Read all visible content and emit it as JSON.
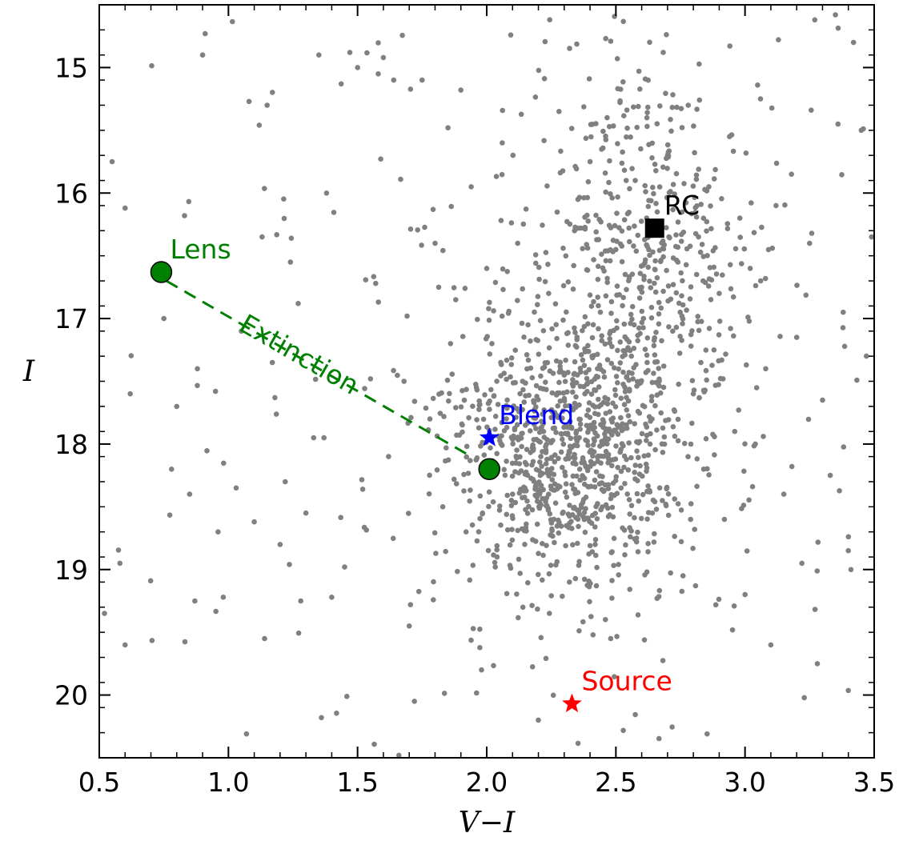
{
  "chart_data": {
    "type": "scatter",
    "title": "",
    "xlabel": "V−I",
    "ylabel": "I",
    "xlim": [
      0.5,
      3.5
    ],
    "ylim": [
      20.5,
      14.5
    ],
    "y_inverted": true,
    "x_ticks": [
      "0.5",
      "1.0",
      "1.5",
      "2.0",
      "2.5",
      "3.0",
      "3.5"
    ],
    "y_ticks": [
      "15",
      "16",
      "17",
      "18",
      "19",
      "20"
    ],
    "grid": false,
    "legend": "none",
    "colors": {
      "field_stars": "#808080",
      "lens": "#008000",
      "blend": "#0000ff",
      "source": "#ff0000",
      "rc": "#000000"
    },
    "field_stars": {
      "description_of_distribution": "bulge field stars concentrated around V-I 1.9–2.9, I 15.5–19.5",
      "sample_points": [
        [
          0.55,
          15.75
        ],
        [
          0.6,
          16.12
        ],
        [
          0.52,
          19.35
        ],
        [
          0.58,
          18.95
        ],
        [
          0.6,
          19.6
        ],
        [
          0.62,
          17.6
        ],
        [
          0.75,
          17.0
        ],
        [
          0.8,
          17.7
        ],
        [
          0.78,
          18.2
        ],
        [
          0.83,
          16.18
        ],
        [
          0.85,
          18.4
        ],
        [
          0.87,
          19.25
        ],
        [
          0.88,
          17.4
        ],
        [
          0.9,
          14.9
        ],
        [
          0.91,
          14.73
        ],
        [
          0.95,
          17.58
        ],
        [
          0.96,
          18.7
        ],
        [
          0.98,
          19.22
        ],
        [
          1.03,
          18.35
        ],
        [
          1.05,
          17.1
        ],
        [
          1.07,
          20.31
        ],
        [
          1.08,
          15.27
        ],
        [
          1.1,
          18.62
        ],
        [
          1.14,
          19.55
        ],
        [
          1.15,
          15.3
        ],
        [
          1.17,
          17.35
        ],
        [
          1.18,
          17.63
        ],
        [
          1.2,
          18.8
        ],
        [
          1.22,
          18.3
        ],
        [
          1.24,
          16.55
        ],
        [
          1.27,
          16.88
        ],
        [
          1.28,
          19.25
        ],
        [
          1.3,
          18.55
        ],
        [
          1.33,
          17.95
        ],
        [
          1.35,
          14.9
        ],
        [
          1.36,
          20.18
        ],
        [
          1.37,
          17.95
        ],
        [
          1.38,
          16.0
        ],
        [
          1.4,
          19.22
        ],
        [
          1.45,
          18.98
        ],
        [
          1.47,
          14.88
        ],
        [
          1.5,
          15.0
        ],
        [
          1.52,
          18.36
        ],
        [
          1.55,
          17.48
        ],
        [
          1.57,
          16.72
        ],
        [
          1.58,
          15.05
        ],
        [
          1.6,
          14.92
        ],
        [
          1.62,
          18.1
        ],
        [
          1.64,
          15.1
        ],
        [
          1.66,
          20.48
        ],
        [
          1.68,
          17.5
        ],
        [
          1.7,
          19.45
        ],
        [
          1.72,
          20.05
        ],
        [
          1.75,
          15.1
        ],
        [
          1.78,
          17.8
        ],
        [
          1.8,
          16.4
        ],
        [
          1.83,
          18.5
        ],
        [
          1.85,
          15.48
        ],
        [
          1.86,
          17.2
        ],
        [
          1.88,
          16.85
        ],
        [
          1.9,
          15.18
        ],
        [
          1.92,
          18.7
        ],
        [
          1.94,
          15.95
        ],
        [
          1.96,
          17.55
        ],
        [
          1.98,
          19.8
        ],
        [
          2.0,
          16.6
        ],
        [
          2.02,
          17.2
        ],
        [
          2.04,
          18.9
        ],
        [
          2.06,
          15.6
        ],
        [
          2.08,
          17.7
        ],
        [
          2.1,
          18.4
        ],
        [
          2.12,
          16.4
        ],
        [
          2.14,
          19.3
        ],
        [
          2.16,
          17.05
        ],
        [
          2.18,
          18.05
        ],
        [
          2.2,
          20.2
        ],
        [
          2.22,
          17.9
        ],
        [
          2.24,
          16.8
        ],
        [
          2.26,
          18.6
        ],
        [
          2.28,
          15.35
        ],
        [
          2.3,
          17.45
        ],
        [
          2.32,
          19.1
        ],
        [
          2.34,
          16.3
        ],
        [
          2.36,
          18.2
        ],
        [
          2.38,
          17.6
        ],
        [
          2.4,
          15.75
        ],
        [
          2.42,
          18.8
        ],
        [
          2.44,
          16.95
        ],
        [
          2.46,
          17.95
        ],
        [
          2.48,
          19.55
        ],
        [
          2.5,
          16.45
        ],
        [
          2.52,
          18.35
        ],
        [
          2.54,
          15.9
        ],
        [
          2.56,
          17.3
        ],
        [
          2.58,
          18.75
        ],
        [
          2.6,
          16.75
        ],
        [
          2.62,
          15.4
        ],
        [
          2.64,
          17.8
        ],
        [
          2.66,
          16.15
        ],
        [
          2.68,
          18.45
        ],
        [
          2.7,
          15.7
        ],
        [
          2.72,
          17.1
        ],
        [
          2.74,
          16.55
        ],
        [
          2.76,
          19.05
        ],
        [
          2.78,
          15.3
        ],
        [
          2.8,
          17.6
        ],
        [
          2.82,
          16.35
        ],
        [
          2.84,
          18.2
        ],
        [
          2.86,
          15.95
        ],
        [
          2.88,
          17.25
        ],
        [
          2.9,
          16.8
        ],
        [
          2.92,
          18.6
        ],
        [
          2.94,
          15.55
        ],
        [
          2.96,
          17.9
        ],
        [
          2.98,
          16.2
        ],
        [
          3.0,
          19.2
        ],
        [
          3.02,
          16.6
        ],
        [
          3.04,
          18.0
        ],
        [
          3.06,
          15.25
        ],
        [
          3.08,
          17.4
        ],
        [
          3.1,
          19.6
        ],
        [
          3.12,
          16.1
        ],
        [
          3.15,
          18.4
        ],
        [
          3.18,
          15.85
        ],
        [
          3.2,
          17.15
        ],
        [
          3.22,
          18.95
        ],
        [
          3.25,
          16.4
        ],
        [
          3.28,
          19.75
        ],
        [
          3.3,
          17.65
        ],
        [
          3.33,
          18.25
        ],
        [
          3.36,
          15.45
        ],
        [
          3.38,
          16.95
        ],
        [
          3.4,
          18.85
        ],
        [
          3.42,
          14.8
        ],
        [
          3.45,
          15.5
        ],
        [
          3.47,
          17.3
        ],
        [
          3.49,
          16.35
        ],
        [
          3.41,
          19.0
        ],
        [
          3.35,
          14.58
        ],
        [
          3.27,
          14.62
        ]
      ]
    },
    "markers": [
      {
        "name": "Lens",
        "x": 0.74,
        "y": 16.63,
        "shape": "circle",
        "color": "#008000",
        "label": "Lens"
      },
      {
        "name": "Lens dereddened",
        "x": 2.01,
        "y": 18.2,
        "shape": "circle",
        "color": "#008000",
        "label": ""
      },
      {
        "name": "Blend",
        "x": 2.01,
        "y": 17.95,
        "shape": "star",
        "color": "#0000ff",
        "label": "Blend"
      },
      {
        "name": "Source",
        "x": 2.33,
        "y": 20.07,
        "shape": "star",
        "color": "#ff0000",
        "label": "Source"
      },
      {
        "name": "RC",
        "x": 2.65,
        "y": 16.28,
        "shape": "square",
        "color": "#000000",
        "label": "RC"
      }
    ],
    "extinction_line": {
      "from": [
        0.76,
        16.7
      ],
      "to": [
        1.94,
        18.1
      ],
      "style": "dashed",
      "color": "#008000",
      "label": "Extinction"
    }
  }
}
